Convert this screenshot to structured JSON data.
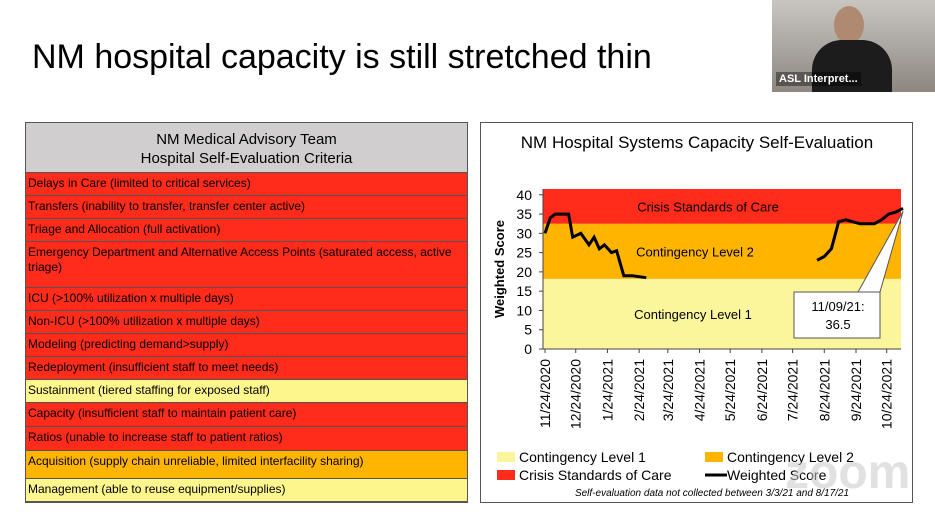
{
  "slide": {
    "title": "NM hospital capacity is still stretched thin"
  },
  "video": {
    "label": "ASL Interpret...",
    "watermark": "zoom"
  },
  "table": {
    "header": [
      "NM Medical Advisory Team",
      "Hospital Self-Evaluation Criteria"
    ],
    "rows": [
      {
        "text": "Delays in Care (limited to critical services)",
        "color": "#ff2b1b"
      },
      {
        "text": "Transfers (inability to transfer, transfer center active)",
        "color": "#ff2b1b"
      },
      {
        "text": "Triage and Allocation (full activation)",
        "color": "#ff2b1b"
      },
      {
        "text": "Emergency Department and Alternative Access Points (saturated access, active triage)",
        "color": "#ff2b1b"
      },
      {
        "text": "ICU (>100% utilization x multiple days)",
        "color": "#ff2b1b"
      },
      {
        "text": "Non-ICU (>100% utilization x multiple days)",
        "color": "#ff2b1b"
      },
      {
        "text": "Modeling (predicting demand>supply)",
        "color": "#ff2b1b"
      },
      {
        "text": "Redeployment (insufficient staff to meet needs)",
        "color": "#ff2b1b"
      },
      {
        "text": "Sustainment (tiered staffing for exposed staff)",
        "color": "#fdf68c"
      },
      {
        "text": "Capacity (insufficient staff to maintain patient care)",
        "color": "#ff2b1b"
      },
      {
        "text": "Ratios (unable to increase staff to patient ratios)",
        "color": "#ff2b1b"
      },
      {
        "text": "Acquisition (supply chain unreliable, limited interfacility sharing)",
        "color": "#ffb400"
      },
      {
        "text": "Management (able to reuse equipment/supplies)",
        "color": "#fdf68c"
      }
    ]
  },
  "chart_data": {
    "type": "line",
    "title": "NM Hospital Systems Capacity Self-Evaluation",
    "y_label": "Weighted Score",
    "ylim": [
      0,
      41.5
    ],
    "yticks": [
      0,
      5,
      10,
      15,
      20,
      25,
      30,
      35,
      40
    ],
    "xlim": [
      "11/22/2020",
      "11/7/2021"
    ],
    "xticks": [
      "11/24/2020",
      "12/24/2020",
      "1/24/2021",
      "2/24/2021",
      "3/24/2021",
      "4/24/2021",
      "5/24/2021",
      "6/24/2021",
      "7/24/2021",
      "8/24/2021",
      "9/24/2021",
      "10/24/2021"
    ],
    "bands": [
      {
        "name": "Contingency Level 1",
        "color": "#fbf59b",
        "from": 0,
        "to": 18.2
      },
      {
        "name": "Contingency Level 2",
        "color": "#ffb400",
        "from": 18.2,
        "to": 32.5
      },
      {
        "name": "Crisis Standards of Care",
        "color": "#ff2b1b",
        "from": 32.5,
        "to": 41.5
      }
    ],
    "series": [
      {
        "name": "Weighted Score",
        "color": "#000000",
        "x": [
          "11/24/2020",
          "11/29/2020",
          "12/4/2020",
          "12/17/2020",
          "12/21/2020",
          "12/29/2020",
          "1/6/2021",
          "1/11/2021",
          "1/16/2021",
          "1/21/2021",
          "1/28/2021",
          "2/2/2021",
          "2/9/2021",
          "2/17/2021",
          "3/3/2021",
          null,
          "8/17/2021",
          "8/24/2021",
          "8/31/2021",
          "9/7/2021",
          "9/14/2021",
          "9/21/2021",
          "9/28/2021",
          "10/5/2021",
          "10/12/2021",
          "10/19/2021",
          "10/26/2021",
          "11/2/2021",
          "11/9/2021"
        ],
        "values": [
          30,
          34,
          35,
          35,
          29,
          30,
          27,
          29,
          26,
          27,
          25,
          25.5,
          19,
          19,
          18.5,
          null,
          23,
          24,
          26,
          33,
          33.5,
          33,
          32.5,
          32.5,
          32.5,
          33.5,
          35,
          35.5,
          36.5
        ]
      }
    ],
    "annotation": "11/09/21:",
    "footnote": "Self-evaluation data not collected between 3/3/21 and 8/17/21"
  }
}
